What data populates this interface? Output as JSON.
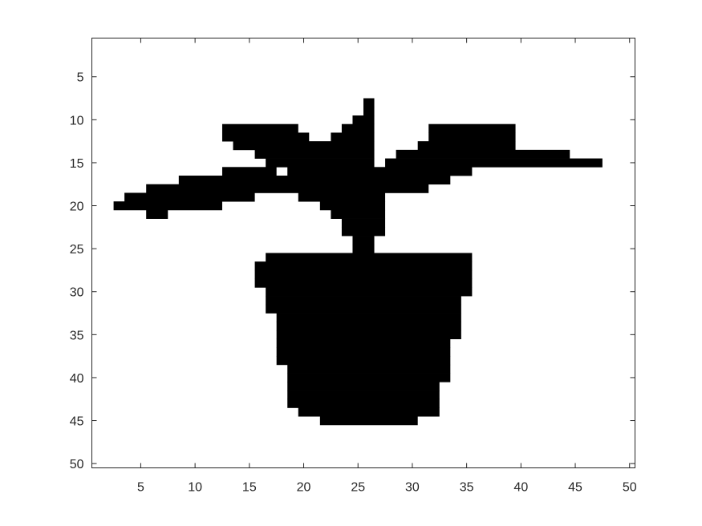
{
  "chart_data": {
    "type": "heatmap",
    "title": "",
    "xlabel": "",
    "ylabel": "",
    "xlim": [
      0.5,
      50.5
    ],
    "ylim": [
      0.5,
      50.5
    ],
    "y_reversed": true,
    "grid": false,
    "colormap": {
      "0": "#ffffff",
      "1": "#000000"
    },
    "x_ticks": [
      5,
      10,
      15,
      20,
      25,
      30,
      35,
      40,
      45,
      50
    ],
    "y_ticks": [
      5,
      10,
      15,
      20,
      25,
      30,
      35,
      40,
      45,
      50
    ],
    "x_tick_labels": [
      "5",
      "10",
      "15",
      "20",
      "25",
      "30",
      "35",
      "40",
      "45",
      "50"
    ],
    "y_tick_labels": [
      "5",
      "10",
      "15",
      "20",
      "25",
      "30",
      "35",
      "40",
      "45",
      "50"
    ],
    "filled_runs_by_row": [
      {
        "row": 8,
        "runs": [
          [
            26,
            26
          ]
        ]
      },
      {
        "row": 9,
        "runs": [
          [
            26,
            26
          ]
        ]
      },
      {
        "row": 10,
        "runs": [
          [
            25,
            26
          ]
        ]
      },
      {
        "row": 11,
        "runs": [
          [
            13,
            19
          ],
          [
            24,
            26
          ],
          [
            32,
            39
          ]
        ]
      },
      {
        "row": 12,
        "runs": [
          [
            13,
            20
          ],
          [
            23,
            26
          ],
          [
            32,
            39
          ]
        ]
      },
      {
        "row": 13,
        "runs": [
          [
            14,
            26
          ],
          [
            31,
            39
          ]
        ]
      },
      {
        "row": 14,
        "runs": [
          [
            16,
            26
          ],
          [
            29,
            44
          ]
        ]
      },
      {
        "row": 15,
        "runs": [
          [
            17,
            26
          ],
          [
            28,
            47
          ]
        ]
      },
      {
        "row": 16,
        "runs": [
          [
            13,
            17
          ],
          [
            19,
            35
          ]
        ]
      },
      {
        "row": 17,
        "runs": [
          [
            9,
            33
          ]
        ]
      },
      {
        "row": 18,
        "runs": [
          [
            6,
            31
          ]
        ]
      },
      {
        "row": 19,
        "runs": [
          [
            4,
            15
          ],
          [
            20,
            27
          ]
        ]
      },
      {
        "row": 20,
        "runs": [
          [
            3,
            12
          ],
          [
            22,
            27
          ]
        ]
      },
      {
        "row": 21,
        "runs": [
          [
            6,
            7
          ],
          [
            23,
            27
          ]
        ]
      },
      {
        "row": 22,
        "runs": [
          [
            24,
            27
          ]
        ]
      },
      {
        "row": 23,
        "runs": [
          [
            24,
            27
          ]
        ]
      },
      {
        "row": 24,
        "runs": [
          [
            25,
            26
          ]
        ]
      },
      {
        "row": 25,
        "runs": [
          [
            25,
            26
          ]
        ]
      },
      {
        "row": 26,
        "runs": [
          [
            17,
            35
          ]
        ]
      },
      {
        "row": 27,
        "runs": [
          [
            16,
            35
          ]
        ]
      },
      {
        "row": 28,
        "runs": [
          [
            16,
            35
          ]
        ]
      },
      {
        "row": 29,
        "runs": [
          [
            16,
            35
          ]
        ]
      },
      {
        "row": 30,
        "runs": [
          [
            17,
            35
          ]
        ]
      },
      {
        "row": 31,
        "runs": [
          [
            17,
            34
          ]
        ]
      },
      {
        "row": 32,
        "runs": [
          [
            17,
            34
          ]
        ]
      },
      {
        "row": 33,
        "runs": [
          [
            18,
            34
          ]
        ]
      },
      {
        "row": 34,
        "runs": [
          [
            18,
            34
          ]
        ]
      },
      {
        "row": 35,
        "runs": [
          [
            18,
            34
          ]
        ]
      },
      {
        "row": 36,
        "runs": [
          [
            18,
            33
          ]
        ]
      },
      {
        "row": 37,
        "runs": [
          [
            18,
            33
          ]
        ]
      },
      {
        "row": 38,
        "runs": [
          [
            18,
            33
          ]
        ]
      },
      {
        "row": 39,
        "runs": [
          [
            19,
            33
          ]
        ]
      },
      {
        "row": 40,
        "runs": [
          [
            19,
            33
          ]
        ]
      },
      {
        "row": 41,
        "runs": [
          [
            19,
            32
          ]
        ]
      },
      {
        "row": 42,
        "runs": [
          [
            19,
            32
          ]
        ]
      },
      {
        "row": 43,
        "runs": [
          [
            19,
            32
          ]
        ]
      },
      {
        "row": 44,
        "runs": [
          [
            20,
            32
          ]
        ]
      },
      {
        "row": 45,
        "runs": [
          [
            22,
            30
          ]
        ]
      }
    ]
  },
  "colors": {
    "axis": "#262626",
    "background": "#ffffff",
    "filled": "#000000"
  }
}
